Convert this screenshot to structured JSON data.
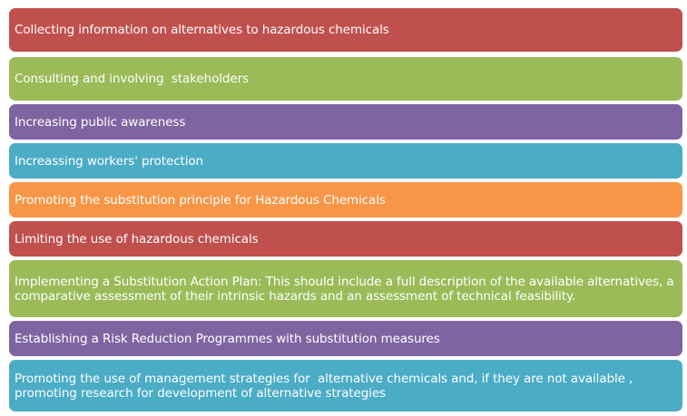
{
  "colors": {
    "red": "#C0504D",
    "green": "#9BBB59",
    "purple": "#8064A2",
    "teal": "#4BACC6",
    "orange": "#F79646"
  },
  "items": [
    {
      "text": "Collecting information on alternatives to hazardous chemicals",
      "color": "red"
    },
    {
      "text": "Consulting and involving  stakeholders",
      "color": "green"
    },
    {
      "text": "Increasing public awareness",
      "color": "purple"
    },
    {
      "text": "Increassing workers' protection",
      "color": "teal"
    },
    {
      "text": "Promoting the substitution principle for Hazardous Chemicals",
      "color": "orange"
    },
    {
      "text": "Limiting the use of hazardous chemicals",
      "color": "red"
    },
    {
      "text": "Implementing a Substitution Action Plan: This should include a full description of the available alternatives, a comparative assessment of their intrinsic hazards and an assessment of technical feasibility.",
      "color": "green"
    },
    {
      "text": "Establishing a Risk Reduction Programmes with substitution measures",
      "color": "purple"
    },
    {
      "text": "Promoting the use of management strategies for  alternative chemicals and, if they are not available , promoting research for development of alternative strategies",
      "color": "teal"
    }
  ]
}
